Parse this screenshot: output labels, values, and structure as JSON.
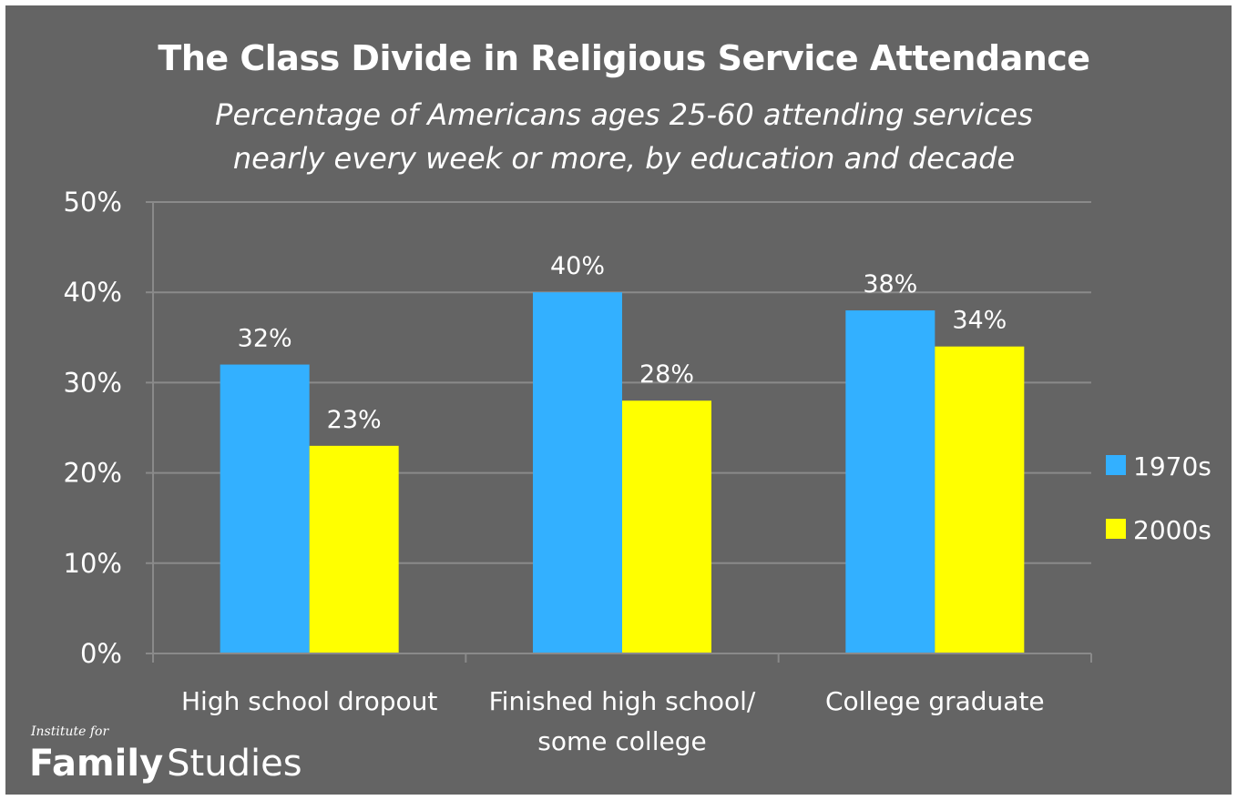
{
  "title": "The Class Divide in Religious Service Attendance",
  "subtitle": "Percentage of Americans ages 25-60 attending services\nnearly every week or more, by education and decade",
  "logo": {
    "small_text": "Institute for",
    "word1": "Family",
    "word2": "Studies"
  },
  "colors": {
    "background": "#646464",
    "series_1970s": "#33b0ff",
    "series_2000s": "#ffff00",
    "gridline": "#8a8a8a",
    "text": "#ffffff"
  },
  "chart_data": {
    "type": "bar",
    "title": "The Class Divide in Religious Service Attendance",
    "subtitle": "Percentage of Americans ages 25-60 attending services nearly every week or more, by education and decade",
    "categories": [
      "High school dropout",
      "Finished high school/\nsome college",
      "College graduate"
    ],
    "series": [
      {
        "name": "1970s",
        "values": [
          32,
          40,
          38
        ],
        "labels": [
          "32%",
          "40%",
          "38%"
        ],
        "color": "#33b0ff"
      },
      {
        "name": "2000s",
        "values": [
          23,
          28,
          34
        ],
        "labels": [
          "23%",
          "28%",
          "34%"
        ],
        "color": "#ffff00"
      }
    ],
    "ylim": [
      0,
      50
    ],
    "yticks": [
      0,
      10,
      20,
      30,
      40,
      50
    ],
    "ytick_labels": [
      "0%",
      "10%",
      "20%",
      "30%",
      "40%",
      "50%"
    ],
    "grid": true,
    "legend": "right"
  }
}
